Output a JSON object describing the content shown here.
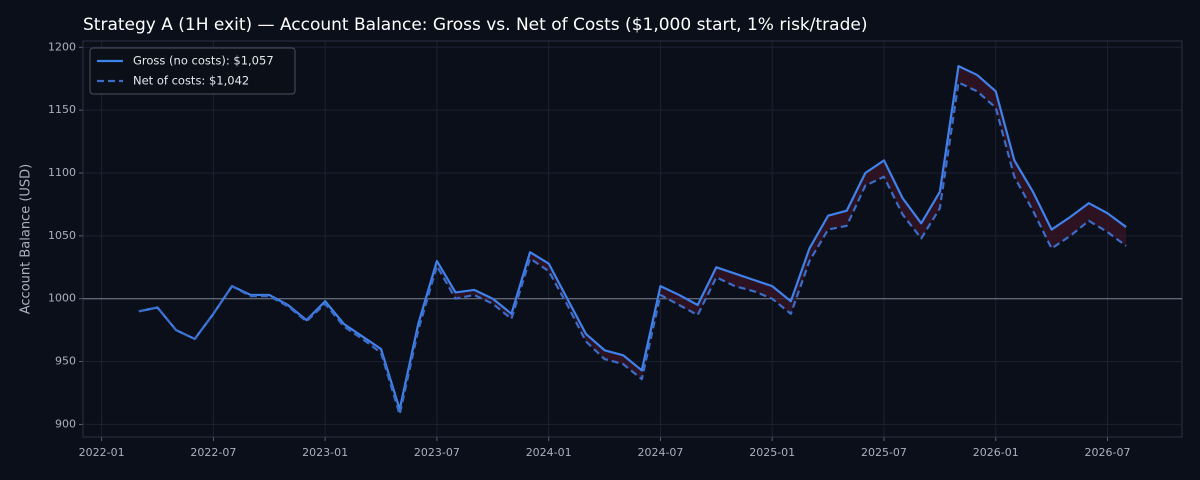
{
  "chart_data": {
    "type": "line",
    "title": "Strategy A (1H exit) — Account Balance: Gross vs. Net of Costs ($1,000 start, 1% risk/trade)",
    "y_label": "Account Balance (USD)",
    "x": [
      "2022-03",
      "2022-04",
      "2022-05",
      "2022-06",
      "2022-07",
      "2022-08",
      "2022-09",
      "2022-10",
      "2022-11",
      "2022-12",
      "2023-01",
      "2023-02",
      "2023-03",
      "2023-04",
      "2023-05",
      "2023-06",
      "2023-07",
      "2023-08",
      "2023-09",
      "2023-10",
      "2023-11",
      "2023-12",
      "2024-01",
      "2024-02",
      "2024-03",
      "2024-04",
      "2024-05",
      "2024-06",
      "2024-07",
      "2024-08",
      "2024-09",
      "2024-10",
      "2024-11",
      "2024-12",
      "2025-01",
      "2025-02",
      "2025-03",
      "2025-04",
      "2025-05",
      "2025-06",
      "2025-07",
      "2025-08",
      "2025-09",
      "2025-10",
      "2025-11",
      "2025-12",
      "2026-01",
      "2026-02",
      "2026-03",
      "2026-04",
      "2026-05",
      "2026-06",
      "2026-07",
      "2026-08"
    ],
    "series": [
      {
        "name": "Gross (no costs): $1,057",
        "color": "#3f82ec",
        "dash": false,
        "values": [
          990,
          993,
          975,
          968,
          988,
          1010,
          1003,
          1003,
          995,
          983,
          998,
          980,
          970,
          960,
          912,
          980,
          1030,
          1005,
          1007,
          1000,
          988,
          1037,
          1028,
          1000,
          972,
          959,
          955,
          943,
          1010,
          1003,
          995,
          1025,
          1020,
          1015,
          1010,
          998,
          1040,
          1066,
          1070,
          1100,
          1110,
          1080,
          1060,
          1085,
          1185,
          1178,
          1165,
          1110,
          1085,
          1055,
          1065,
          1076,
          1068,
          1057
        ]
      },
      {
        "name": "Net of costs: $1,042",
        "color": "#3a6cc8",
        "dash": true,
        "values": [
          990,
          993,
          975,
          968,
          988,
          1010,
          1002,
          1002,
          994,
          982,
          996,
          978,
          968,
          957,
          908,
          975,
          1026,
          1000,
          1003,
          996,
          984,
          1032,
          1022,
          995,
          966,
          952,
          948,
          936,
          1003,
          995,
          987,
          1017,
          1010,
          1006,
          1000,
          988,
          1030,
          1055,
          1058,
          1090,
          1097,
          1067,
          1048,
          1072,
          1172,
          1165,
          1152,
          1097,
          1070,
          1040,
          1050,
          1062,
          1053,
          1042
        ]
      }
    ],
    "xlim": [
      "2021-12",
      "2026-11"
    ],
    "xticks": [
      "2022-01",
      "2022-07",
      "2023-01",
      "2023-07",
      "2024-01",
      "2024-07",
      "2025-01",
      "2025-07",
      "2026-01",
      "2026-07"
    ],
    "ylim": [
      890,
      1205
    ],
    "yticks": [
      900,
      950,
      1000,
      1050,
      1100,
      1150,
      1200
    ],
    "hline": 1000,
    "grid": true,
    "legend": "upper left"
  }
}
